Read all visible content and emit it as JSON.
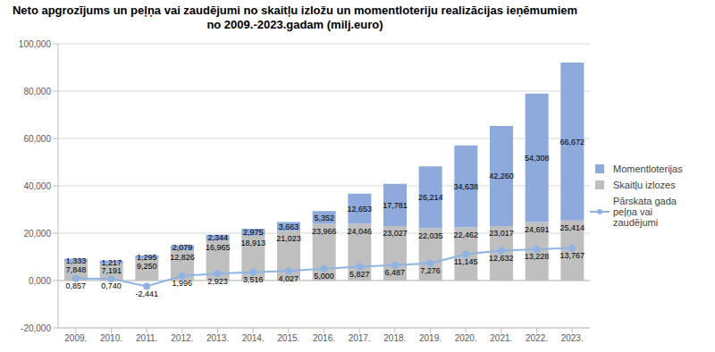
{
  "chart_data": {
    "type": "bar",
    "title": "Neto apgrozījums un peļņa vai zaudējumi no skaitļu izložu un momentloteriju realizācijas ieņēmumiem\nno 2009.-2023.gadam (milj.euro)",
    "categories": [
      "2009.",
      "2010.",
      "2011.",
      "2012.",
      "2013.",
      "2014.",
      "2015.",
      "2016.",
      "2017.",
      "2018.",
      "2019.",
      "2020.",
      "2021.",
      "2022.",
      "2023."
    ],
    "series": [
      {
        "name": "Momentloterijas",
        "type": "bar",
        "color": "#8EA9DB",
        "values": [
          1.333,
          1.217,
          1.295,
          2.079,
          2.344,
          2.975,
          3.663,
          5.352,
          12.653,
          17.781,
          26.214,
          34.638,
          42.26,
          54.308,
          66.672
        ],
        "value_labels": [
          "1,333",
          "1,217",
          "1,295",
          "2,079",
          "2,344",
          "2,975",
          "3,663",
          "5,352",
          "12,653",
          "17,781",
          "26,214",
          "34,638",
          "42,260",
          "54,308",
          "66,672"
        ]
      },
      {
        "name": "Skaitļu izlozes",
        "type": "bar",
        "color": "#BFBFBF",
        "values": [
          7.848,
          7.191,
          9.25,
          12.826,
          16.965,
          18.913,
          21.023,
          23.966,
          24.046,
          23.027,
          22.035,
          22.462,
          23.017,
          24.691,
          25.414
        ],
        "value_labels": [
          "7,848",
          "7,191",
          "9,250",
          "12,826",
          "16,965",
          "18,913",
          "21,023",
          "23,966",
          "24,046",
          "23,027",
          "22,035",
          "22,462",
          "23,017",
          "24,691",
          "25,414"
        ]
      },
      {
        "name": "Pārskata gada peļņa vai zaudējumi",
        "type": "line",
        "color": "#8FB4E3",
        "marker": "circle",
        "values": [
          0.857,
          0.74,
          -2.441,
          1.996,
          2.923,
          3.516,
          4.027,
          5.0,
          5.827,
          6.487,
          7.276,
          11.145,
          12.632,
          13.228,
          13.767
        ],
        "value_labels": [
          "0,857",
          "0,740",
          "-2,441",
          "1,996",
          "2,923",
          "3,516",
          "4,027",
          "5,000",
          "5,827",
          "6,487",
          "7,276",
          "11,145",
          "12,632",
          "13,228",
          "13,767"
        ]
      }
    ],
    "ylim": [
      -20,
      100
    ],
    "yticks": [
      {
        "value": -20,
        "label": "-20,000"
      },
      {
        "value": 0,
        "label": "0,000"
      },
      {
        "value": 20,
        "label": "20,000"
      },
      {
        "value": 40,
        "label": "40,000"
      },
      {
        "value": 60,
        "label": "60,000"
      },
      {
        "value": 80,
        "label": "80,000"
      },
      {
        "value": 100,
        "label": "100,000"
      }
    ],
    "grid": true,
    "stacked": true,
    "data_labels": true,
    "legend": "right"
  }
}
